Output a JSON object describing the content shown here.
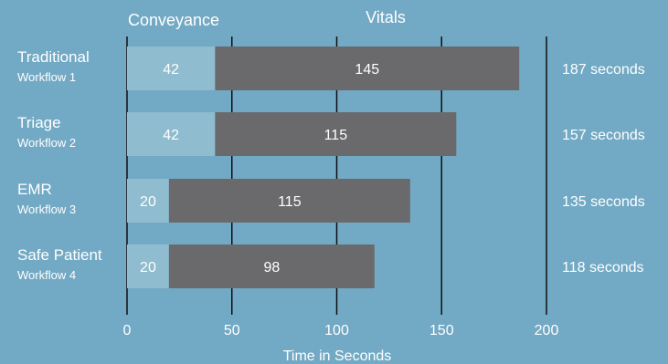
{
  "chart_data": {
    "type": "bar",
    "orientation": "horizontal",
    "stacked": true,
    "categories": [
      {
        "label": "Traditional",
        "sublabel": "Workflow 1"
      },
      {
        "label": "Triage",
        "sublabel": "Workflow 2"
      },
      {
        "label": "EMR",
        "sublabel": "Workflow 3"
      },
      {
        "label": "Safe Patient",
        "sublabel": "Workflow 4"
      }
    ],
    "series": [
      {
        "name": "Conveyance",
        "values": [
          42,
          42,
          20,
          20
        ],
        "color": "#8fbccf"
      },
      {
        "name": "Vitals",
        "values": [
          145,
          115,
          115,
          98
        ],
        "color": "#6a6a6d"
      }
    ],
    "totals": [
      "187 seconds",
      "157 seconds",
      "135 seconds",
      "118 seconds"
    ],
    "xlabel": "Time in Seconds",
    "xlim": [
      0,
      200
    ],
    "xticks": [
      0,
      50,
      100,
      150,
      200
    ],
    "grid": "vertical lines at ticks",
    "legend": "top"
  }
}
